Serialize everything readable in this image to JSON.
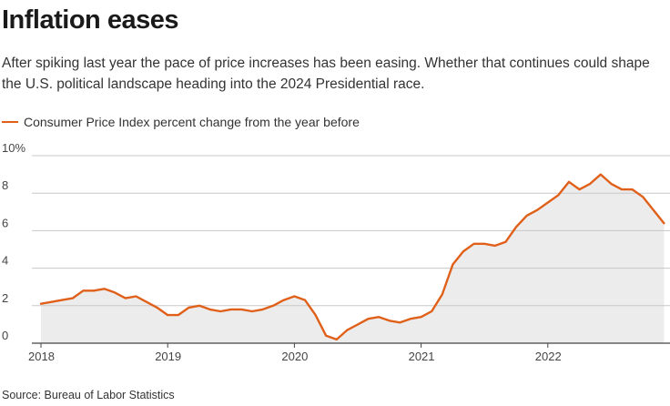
{
  "header": {
    "title": "Inflation eases",
    "subtitle": "After spiking last year the pace of price increases has been easing. Whether that continues could shape the U.S. political landscape heading into the 2024 Presidential race."
  },
  "source": "Source: Bureau of Labor Statistics",
  "colors": {
    "line": "#e0601a",
    "area": "#ececec",
    "grid": "#c8c8c8",
    "axis": "#444444"
  },
  "chart_data": {
    "type": "area",
    "series": [
      {
        "name": "Consumer Price Index percent change from the year before",
        "start": "2018-01",
        "frequency": "monthly",
        "values": [
          2.1,
          2.2,
          2.3,
          2.4,
          2.8,
          2.8,
          2.9,
          2.7,
          2.4,
          2.5,
          2.2,
          1.9,
          1.5,
          1.5,
          1.9,
          2.0,
          1.8,
          1.7,
          1.8,
          1.8,
          1.7,
          1.8,
          2.0,
          2.3,
          2.5,
          2.3,
          1.5,
          0.4,
          0.2,
          0.7,
          1.0,
          1.3,
          1.4,
          1.2,
          1.1,
          1.3,
          1.4,
          1.7,
          2.6,
          4.2,
          4.9,
          5.3,
          5.3,
          5.2,
          5.4,
          6.2,
          6.8,
          7.1,
          7.5,
          7.9,
          8.6,
          8.2,
          8.5,
          9.0,
          8.5,
          8.2,
          8.2,
          7.8,
          7.1,
          6.4
        ]
      }
    ],
    "x_ticks": [
      "2018",
      "2019",
      "2020",
      "2021",
      "2022"
    ],
    "y_ticks": [
      "0",
      "2",
      "4",
      "6",
      "8",
      "10%"
    ],
    "ylim": [
      0,
      10
    ],
    "grid": true,
    "legend": "top-left"
  }
}
